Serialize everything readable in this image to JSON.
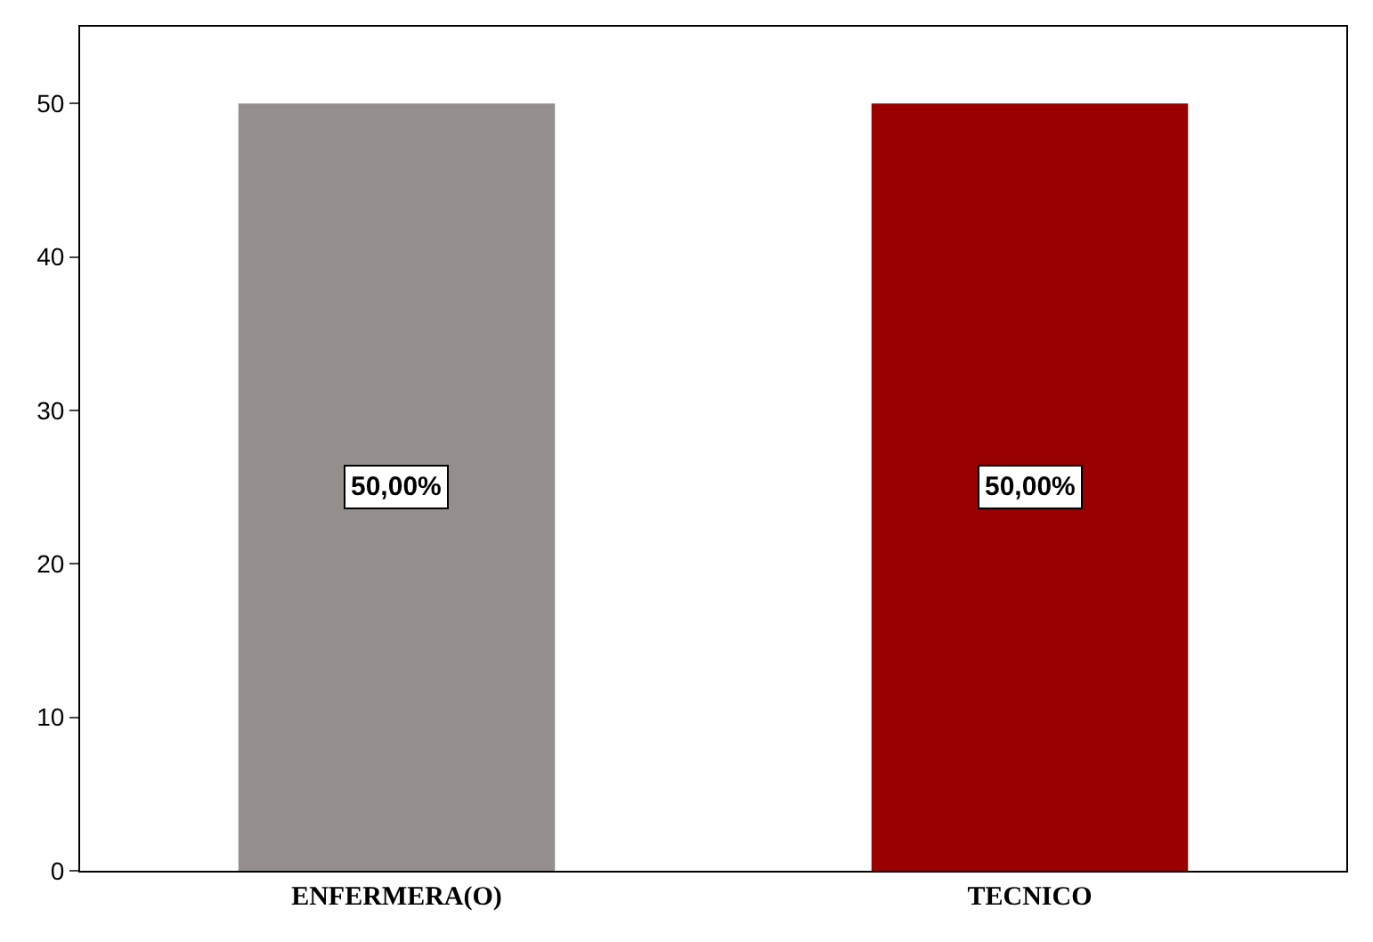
{
  "chart_data": {
    "type": "bar",
    "categories": [
      "ENFERMERA(O)",
      "TECNICO"
    ],
    "values": [
      50,
      50
    ],
    "colors": [
      "#948f8c",
      "#990000"
    ],
    "value_labels": [
      "50,00%",
      "50,00%"
    ],
    "ylim": [
      0,
      55
    ],
    "yticks": [
      0,
      10,
      20,
      30,
      40,
      50
    ]
  }
}
